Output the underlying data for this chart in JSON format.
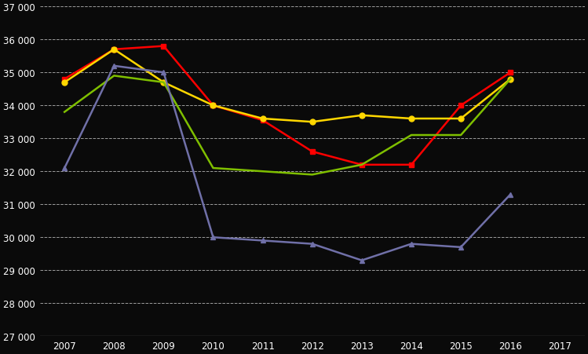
{
  "series": [
    {
      "name": "Red",
      "color": "#FF0000",
      "marker": "s",
      "markersize": 5,
      "linewidth": 1.8,
      "xs": [
        2007,
        2008,
        2009,
        2010,
        2011,
        2012,
        2013,
        2014,
        2015,
        2016
      ],
      "ys": [
        34800,
        35700,
        35800,
        34000,
        33550,
        32600,
        32200,
        32200,
        34000,
        35000
      ]
    },
    {
      "name": "Yellow",
      "color": "#FFD700",
      "marker": "o",
      "markersize": 5,
      "linewidth": 1.8,
      "xs": [
        2007,
        2008,
        2009,
        2010,
        2011,
        2012,
        2013,
        2014,
        2015,
        2016
      ],
      "ys": [
        34700,
        35700,
        34700,
        34000,
        33600,
        33500,
        33700,
        33600,
        33600,
        34800
      ]
    },
    {
      "name": "Green",
      "color": "#7FBF00",
      "marker": "",
      "markersize": 0,
      "linewidth": 1.8,
      "xs": [
        2007,
        2008,
        2009,
        2010,
        2011,
        2012,
        2013,
        2014,
        2015,
        2016
      ],
      "ys": [
        33800,
        34900,
        34700,
        32100,
        32000,
        31900,
        32200,
        33100,
        33100,
        34800
      ]
    },
    {
      "name": "Blue",
      "color": "#7070A8",
      "marker": "^",
      "markersize": 5,
      "linewidth": 1.8,
      "xs": [
        2007,
        2008,
        2009,
        2010,
        2011,
        2012,
        2013,
        2014,
        2015,
        2016
      ],
      "ys": [
        32100,
        35200,
        35000,
        30000,
        29900,
        29800,
        29300,
        29800,
        29700,
        31300
      ]
    }
  ],
  "ylim": [
    27000,
    37000
  ],
  "yticks": [
    27000,
    28000,
    29000,
    30000,
    31000,
    32000,
    33000,
    34000,
    35000,
    36000,
    37000
  ],
  "xticks": [
    2007,
    2008,
    2009,
    2010,
    2011,
    2012,
    2013,
    2014,
    2015,
    2016,
    2017
  ],
  "xlim": [
    2006.5,
    2017.5
  ],
  "background_color": "#0a0a0a",
  "grid_color": "#FFFFFF",
  "tick_label_color": "#FFFFFF",
  "grid_alpha": 0.6,
  "grid_linewidth": 0.7,
  "figsize": [
    7.49,
    4.52
  ],
  "dpi": 100
}
